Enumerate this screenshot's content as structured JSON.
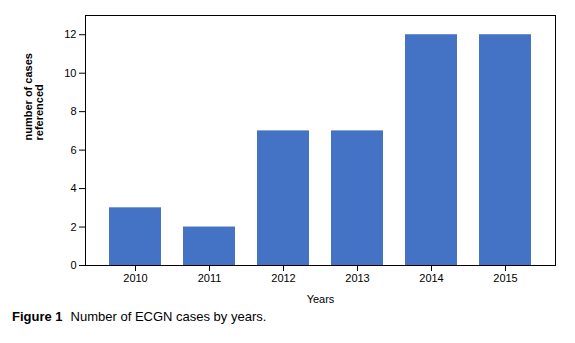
{
  "chart_data": {
    "type": "bar",
    "categories": [
      "2010",
      "2011",
      "2012",
      "2013",
      "2014",
      "2015"
    ],
    "values": [
      3,
      2,
      7,
      7,
      12,
      12
    ],
    "color": "#4472C4",
    "ylim": [
      0,
      13
    ],
    "yticks": [
      0,
      2,
      4,
      6,
      8,
      10,
      12
    ],
    "xlabel": "Years",
    "ylabel": "number of cases\nreferenced",
    "caption_label": "Figure 1",
    "caption": "Number of ECGN cases by years.",
    "grid": false
  }
}
